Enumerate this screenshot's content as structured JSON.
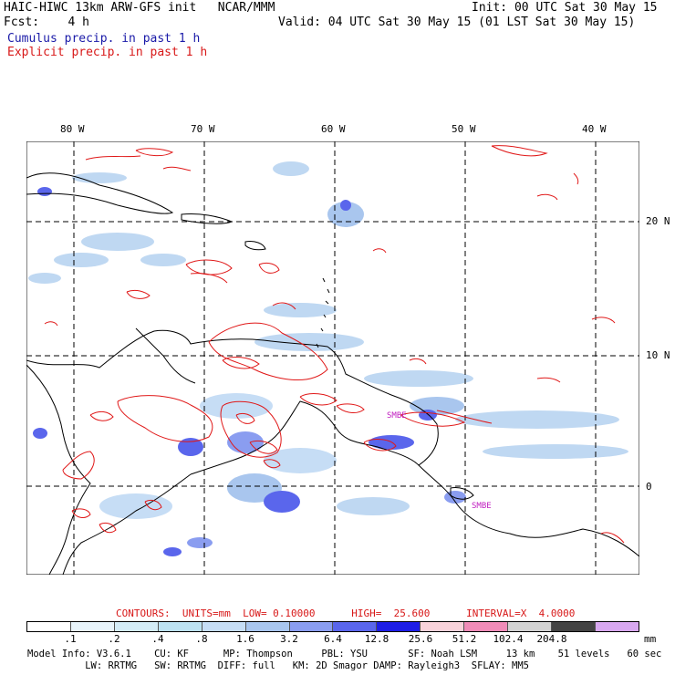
{
  "header": {
    "left_line1": "HAIC-HIWC 13km ARW-GFS init   NCAR/MMM",
    "left_line2": "Fcst:    4 h",
    "right_line1": "Init: 00 UTC Sat 30 May 15",
    "right_line2": "Valid: 04 UTC Sat 30 May 15 (01 LST Sat 30 May 15)",
    "cumulus_label": "Cumulus precip. in past 1 h",
    "explicit_label": "Explicit precip. in past 1 h"
  },
  "map": {
    "lon_labels": [
      "80 W",
      "70 W",
      "60 W",
      "50 W",
      "40 W"
    ],
    "lat_labels": [
      "20 N",
      "10 N",
      "0"
    ],
    "annotations": [
      "SMBE",
      "SMBE"
    ]
  },
  "contours": {
    "label": "CONTOURS:  UNITS=mm  LOW= 0.10000      HIGH=  25.600      INTERVAL=X  4.0000"
  },
  "legend": {
    "colors": [
      "#ffffff",
      "#e8f4fb",
      "#d4ecf7",
      "#bde2f2",
      "#c6ddf5",
      "#a9c6ee",
      "#8a9df0",
      "#5a66ec",
      "#1e1ee6",
      "#f8d2da",
      "#f08cb8",
      "#d2d2d2",
      "#444444",
      "#d8a8f0"
    ],
    "labels": [
      ".1",
      ".2",
      ".4",
      ".8",
      "1.6",
      "3.2",
      "6.4",
      "12.8",
      "25.6",
      "51.2",
      "102.4",
      "204.8"
    ],
    "unit": "mm"
  },
  "footer": {
    "line1": "Model Info: V3.6.1    CU: KF      MP: Thompson     PBL: YSU       SF: Noah LSM     13 km    51 levels   60 sec",
    "line2": "          LW: RRTMG   SW: RRTMG  DIFF: full   KM: 2D Smagor DAMP: Rayleigh3  SFLAY: MM5"
  }
}
